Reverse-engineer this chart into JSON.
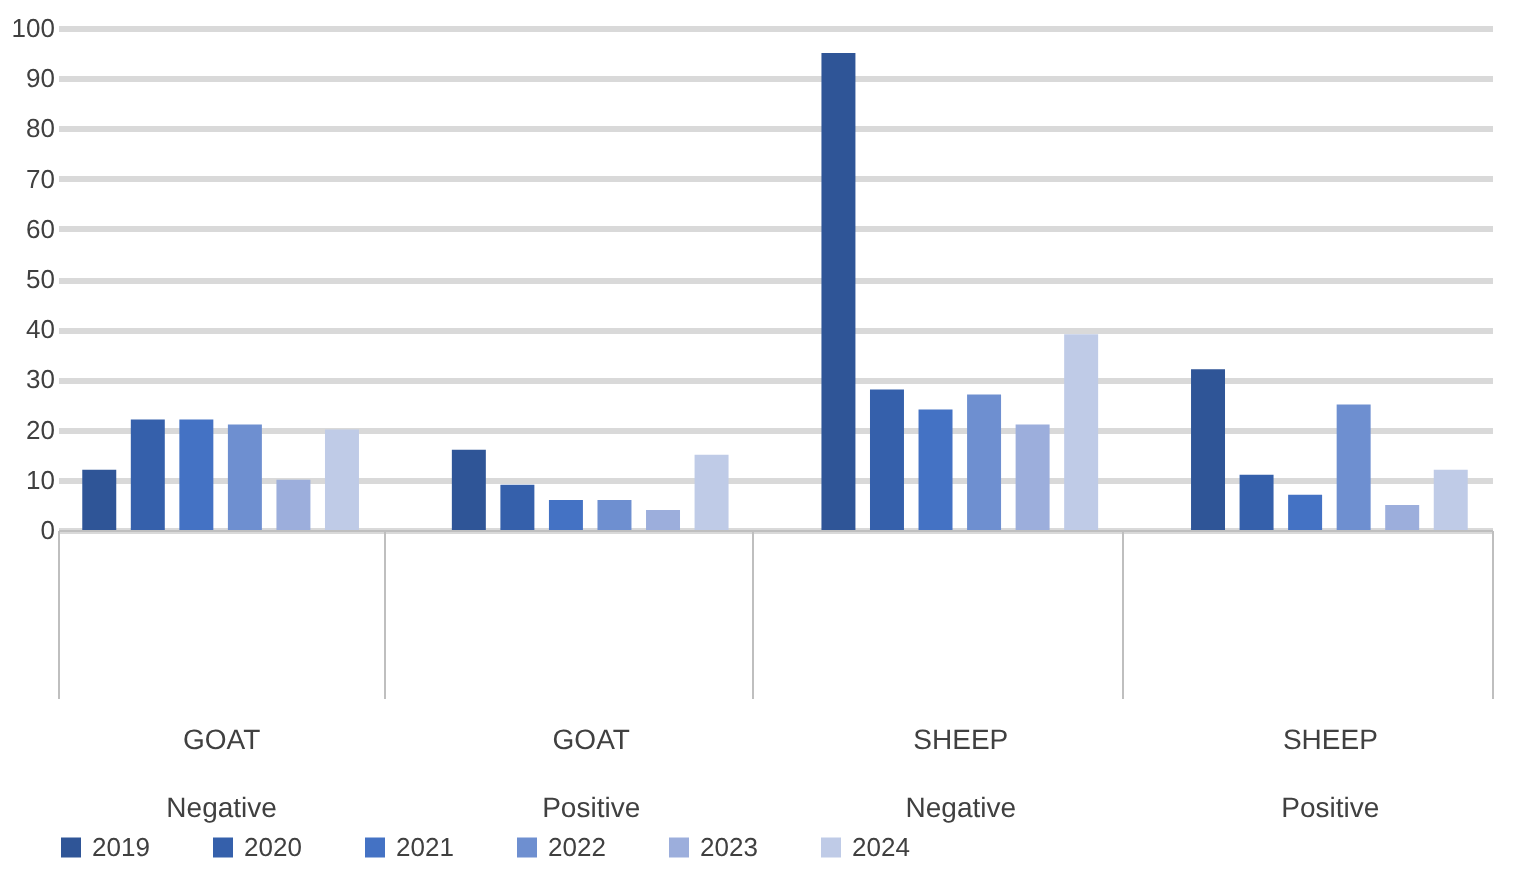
{
  "chart_data": {
    "type": "bar",
    "categories": [
      "GOAT Negative",
      "GOAT Positive",
      "SHEEP Negative",
      "SHEEP Positive"
    ],
    "series": [
      {
        "name": "2019",
        "color": "#2f5597",
        "values": [
          12,
          16,
          95,
          32
        ]
      },
      {
        "name": "2020",
        "color": "#3560ab",
        "values": [
          22,
          9,
          28,
          11
        ]
      },
      {
        "name": "2021",
        "color": "#4472c4",
        "values": [
          22,
          6,
          24,
          7
        ]
      },
      {
        "name": "2022",
        "color": "#6e8fd0",
        "values": [
          21,
          6,
          27,
          25
        ]
      },
      {
        "name": "2023",
        "color": "#9caedc",
        "values": [
          10,
          4,
          21,
          5
        ]
      },
      {
        "name": "2024",
        "color": "#bfcbe7",
        "values": [
          20,
          15,
          39,
          12
        ]
      }
    ],
    "ylim": [
      0,
      100
    ],
    "yticks": [
      0,
      10,
      20,
      30,
      40,
      50,
      60,
      70,
      80,
      90,
      100
    ],
    "grid": "y",
    "legend": "bottom"
  }
}
